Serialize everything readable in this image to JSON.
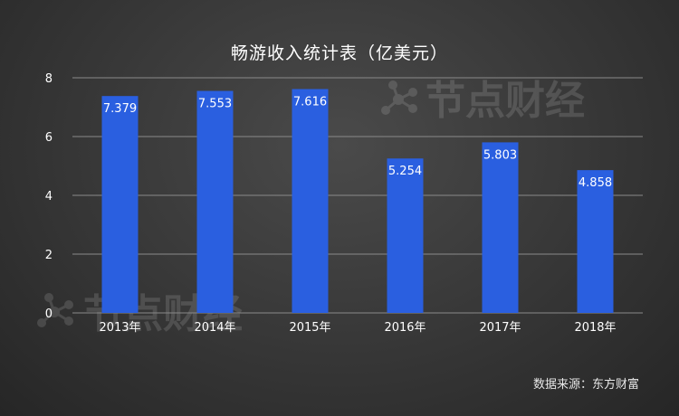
{
  "chart_data": {
    "type": "bar",
    "title": "畅游收入统计表（亿美元）",
    "categories": [
      "2013年",
      "2014年",
      "2015年",
      "2016年",
      "2017年",
      "2018年"
    ],
    "values": [
      7.379,
      7.553,
      7.616,
      5.254,
      5.803,
      4.858
    ],
    "value_labels": [
      "7.379",
      "7.553",
      "7.616",
      "5.254",
      "5.803",
      "4.858"
    ],
    "y_ticks": [
      "0",
      "2",
      "4",
      "6",
      "8"
    ],
    "ylim": [
      0,
      8
    ],
    "grid": true,
    "legend": "none",
    "bar_color": "#2a5fe0",
    "grid_color": "#8a8a8a"
  },
  "source": "数据来源：东方财富",
  "watermark": {
    "text": "节点财经"
  }
}
